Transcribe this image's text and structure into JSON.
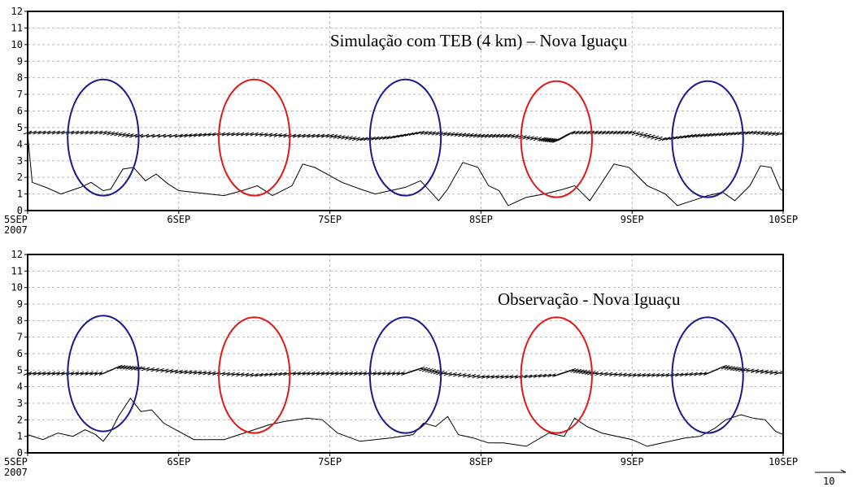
{
  "chart_data": [
    {
      "type": "line",
      "title": "Simulação com TEB (4 km) – Nova Iguaçu",
      "x_tick_labels": [
        "5SEP",
        "6SEP",
        "7SEP",
        "8SEP",
        "9SEP",
        "10SEP"
      ],
      "x_year_label": "2007",
      "y_ticks": [
        "0",
        "1",
        "2",
        "3",
        "4",
        "5",
        "6",
        "7",
        "8",
        "9",
        "10",
        "11",
        "12"
      ],
      "ylim": [
        0,
        12
      ],
      "xlim": [
        0,
        5
      ],
      "grid": true,
      "series": [
        {
          "values": [
            [
              0,
              4.6
            ],
            [
              0.03,
              1.7
            ],
            [
              0.12,
              1.4
            ],
            [
              0.22,
              1.0
            ],
            [
              0.35,
              1.4
            ],
            [
              0.42,
              1.7
            ],
            [
              0.5,
              1.2
            ],
            [
              0.55,
              1.3
            ],
            [
              0.63,
              2.5
            ],
            [
              0.7,
              2.6
            ],
            [
              0.78,
              1.8
            ],
            [
              0.85,
              2.2
            ],
            [
              0.93,
              1.6
            ],
            [
              1.0,
              1.2
            ],
            [
              1.2,
              1.0
            ],
            [
              1.3,
              0.9
            ],
            [
              1.42,
              1.2
            ],
            [
              1.52,
              1.5
            ],
            [
              1.62,
              0.9
            ],
            [
              1.75,
              1.5
            ],
            [
              1.82,
              2.8
            ],
            [
              1.9,
              2.6
            ],
            [
              2.0,
              2.1
            ],
            [
              2.08,
              1.7
            ],
            [
              2.2,
              1.3
            ],
            [
              2.3,
              1.0
            ],
            [
              2.5,
              1.4
            ],
            [
              2.6,
              1.8
            ],
            [
              2.72,
              0.6
            ],
            [
              2.78,
              1.3
            ],
            [
              2.88,
              2.9
            ],
            [
              2.98,
              2.6
            ],
            [
              3.05,
              1.5
            ],
            [
              3.12,
              1.2
            ],
            [
              3.18,
              0.3
            ],
            [
              3.3,
              0.8
            ],
            [
              3.42,
              1.0
            ],
            [
              3.55,
              1.3
            ],
            [
              3.62,
              1.5
            ],
            [
              3.72,
              0.6
            ],
            [
              3.78,
              1.4
            ],
            [
              3.88,
              2.8
            ],
            [
              3.98,
              2.6
            ],
            [
              4.1,
              1.5
            ],
            [
              4.22,
              1.0
            ],
            [
              4.3,
              0.3
            ],
            [
              4.4,
              0.6
            ],
            [
              4.5,
              0.9
            ],
            [
              4.6,
              1.1
            ],
            [
              4.68,
              0.6
            ],
            [
              4.78,
              1.5
            ],
            [
              4.85,
              2.7
            ],
            [
              4.92,
              2.6
            ],
            [
              4.98,
              1.3
            ],
            [
              5.0,
              1.2
            ]
          ]
        },
        {
          "values": [
            [
              0,
              4.7
            ],
            [
              0.25,
              4.7
            ],
            [
              0.5,
              4.7
            ],
            [
              0.7,
              4.5
            ],
            [
              1.0,
              4.5
            ],
            [
              1.25,
              4.6
            ],
            [
              1.5,
              4.6
            ],
            [
              1.75,
              4.5
            ],
            [
              2.0,
              4.5
            ],
            [
              2.2,
              4.3
            ],
            [
              2.4,
              4.4
            ],
            [
              2.6,
              4.7
            ],
            [
              2.8,
              4.6
            ],
            [
              3.0,
              4.5
            ],
            [
              3.2,
              4.5
            ],
            [
              3.4,
              4.3
            ],
            [
              3.5,
              4.2
            ],
            [
              3.6,
              4.7
            ],
            [
              3.8,
              4.7
            ],
            [
              4.0,
              4.7
            ],
            [
              4.2,
              4.3
            ],
            [
              4.4,
              4.5
            ],
            [
              4.6,
              4.6
            ],
            [
              4.8,
              4.7
            ],
            [
              5.0,
              4.6
            ]
          ]
        }
      ],
      "annotation_ellipses": [
        {
          "x": 0.5,
          "y": 4.4,
          "color": "#1a1a8c"
        },
        {
          "x": 1.5,
          "y": 4.4,
          "color": "#e01818"
        },
        {
          "x": 2.5,
          "y": 4.4,
          "color": "#1a1a8c"
        },
        {
          "x": 3.5,
          "y": 4.3,
          "color": "#e01818"
        },
        {
          "x": 4.5,
          "y": 4.3,
          "color": "#1a1a8c"
        }
      ]
    },
    {
      "type": "line",
      "title": "Observação - Nova Iguaçu",
      "x_tick_labels": [
        "5SEP",
        "6SEP",
        "7SEP",
        "8SEP",
        "9SEP",
        "10SEP"
      ],
      "x_year_label": "2007",
      "y_ticks": [
        "0",
        "1",
        "2",
        "3",
        "4",
        "5",
        "6",
        "7",
        "8",
        "9",
        "10",
        "11",
        "12"
      ],
      "ylim": [
        0,
        12
      ],
      "xlim": [
        0,
        5
      ],
      "grid": true,
      "series": [
        {
          "values": [
            [
              0,
              1.1
            ],
            [
              0.1,
              0.8
            ],
            [
              0.2,
              1.2
            ],
            [
              0.3,
              1.0
            ],
            [
              0.38,
              1.4
            ],
            [
              0.45,
              1.1
            ],
            [
              0.5,
              0.7
            ],
            [
              0.55,
              1.3
            ],
            [
              0.6,
              2.2
            ],
            [
              0.68,
              3.3
            ],
            [
              0.75,
              2.5
            ],
            [
              0.82,
              2.6
            ],
            [
              0.9,
              1.8
            ],
            [
              1.0,
              1.3
            ],
            [
              1.1,
              0.8
            ],
            [
              1.3,
              0.8
            ],
            [
              1.5,
              1.4
            ],
            [
              1.6,
              1.7
            ],
            [
              1.7,
              1.9
            ],
            [
              1.85,
              2.1
            ],
            [
              1.95,
              2.0
            ],
            [
              2.05,
              1.2
            ],
            [
              2.2,
              0.7
            ],
            [
              2.4,
              0.9
            ],
            [
              2.55,
              1.1
            ],
            [
              2.62,
              1.8
            ],
            [
              2.7,
              1.6
            ],
            [
              2.78,
              2.2
            ],
            [
              2.85,
              1.1
            ],
            [
              2.95,
              0.9
            ],
            [
              3.05,
              0.6
            ],
            [
              3.15,
              0.6
            ],
            [
              3.3,
              0.4
            ],
            [
              3.45,
              1.2
            ],
            [
              3.55,
              1.0
            ],
            [
              3.62,
              2.1
            ],
            [
              3.7,
              1.6
            ],
            [
              3.8,
              1.2
            ],
            [
              3.9,
              1.0
            ],
            [
              4.0,
              0.8
            ],
            [
              4.1,
              0.4
            ],
            [
              4.2,
              0.6
            ],
            [
              4.35,
              0.9
            ],
            [
              4.45,
              1.0
            ],
            [
              4.55,
              1.5
            ],
            [
              4.62,
              2.0
            ],
            [
              4.72,
              2.3
            ],
            [
              4.8,
              2.1
            ],
            [
              4.88,
              2.0
            ],
            [
              4.95,
              1.3
            ],
            [
              5.0,
              1.1
            ]
          ]
        },
        {
          "values": [
            [
              0,
              4.8
            ],
            [
              0.25,
              4.8
            ],
            [
              0.5,
              4.8
            ],
            [
              0.6,
              5.2
            ],
            [
              0.75,
              5.1
            ],
            [
              1.0,
              4.9
            ],
            [
              1.25,
              4.8
            ],
            [
              1.5,
              4.7
            ],
            [
              1.75,
              4.8
            ],
            [
              2.0,
              4.8
            ],
            [
              2.25,
              4.8
            ],
            [
              2.5,
              4.8
            ],
            [
              2.6,
              5.1
            ],
            [
              2.75,
              4.8
            ],
            [
              3.0,
              4.6
            ],
            [
              3.25,
              4.6
            ],
            [
              3.5,
              4.7
            ],
            [
              3.6,
              5.0
            ],
            [
              3.75,
              4.8
            ],
            [
              4.0,
              4.7
            ],
            [
              4.25,
              4.7
            ],
            [
              4.5,
              4.8
            ],
            [
              4.6,
              5.2
            ],
            [
              4.75,
              5.0
            ],
            [
              5.0,
              4.8
            ]
          ]
        }
      ],
      "annotation_ellipses": [
        {
          "x": 0.5,
          "y": 4.8,
          "color": "#1a1a8c"
        },
        {
          "x": 1.5,
          "y": 4.7,
          "color": "#e01818"
        },
        {
          "x": 2.5,
          "y": 4.7,
          "color": "#1a1a8c"
        },
        {
          "x": 3.5,
          "y": 4.7,
          "color": "#e01818"
        },
        {
          "x": 4.5,
          "y": 4.7,
          "color": "#1a1a8c"
        }
      ]
    }
  ],
  "vector_reference_label": "10"
}
